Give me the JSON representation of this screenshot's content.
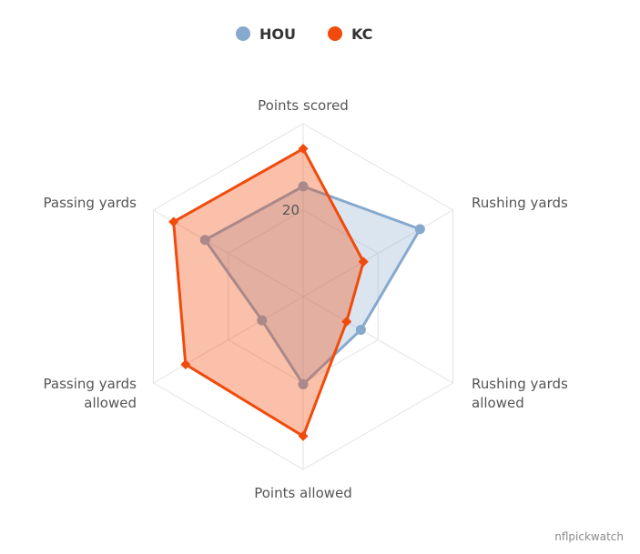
{
  "chart_data": {
    "type": "radar",
    "axes": [
      "Points scored",
      "Rushing yards",
      "Rushing yards allowed",
      "Points allowed",
      "Passing yards allowed",
      "Passing yards"
    ],
    "axis_label_lines": [
      [
        "Points scored"
      ],
      [
        "Rushing yards"
      ],
      [
        "Rushing yards",
        "allowed"
      ],
      [
        "Points allowed"
      ],
      [
        "Passing yards",
        "allowed"
      ],
      [
        "Passing yards"
      ]
    ],
    "tick_label": "20",
    "tick_value": 20,
    "max_value": 40,
    "gridlines": [
      20,
      40
    ],
    "series": [
      {
        "name": "HOU",
        "color": "#86a9cd",
        "marker": "circle",
        "values": [
          25.5,
          31.2,
          15.4,
          20.3,
          11.0,
          26.2
        ]
      },
      {
        "name": "KC",
        "color": "#f04b0c",
        "marker": "diamond",
        "values": [
          34.2,
          16.1,
          11.6,
          32.3,
          31.4,
          34.6
        ]
      }
    ],
    "legend_position": "top-center"
  },
  "credit": "nflpickwatch"
}
